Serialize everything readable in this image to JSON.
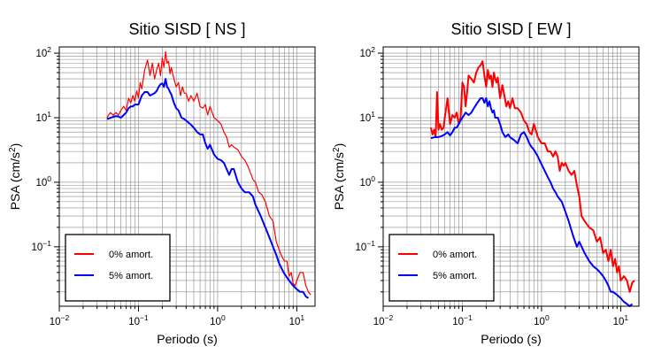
{
  "chart_data": [
    {
      "type": "line",
      "title": "Sitio SISD [ NS ]",
      "xlabel": "Periodo (s)",
      "ylabel_base": "PSA (cm/s",
      "ylabel_sup": "2",
      "ylabel_end": ")",
      "xscale": "log",
      "yscale": "log",
      "xlim": [
        0.01,
        17
      ],
      "ylim": [
        0.012,
        125
      ],
      "grid": true,
      "legend_position": "bottom-left",
      "x_ticks": [
        {
          "v": 0.01,
          "b": "10",
          "e": "−2"
        },
        {
          "v": 0.1,
          "b": "10",
          "e": "−1"
        },
        {
          "v": 1,
          "b": "10",
          "e": "0"
        },
        {
          "v": 10,
          "b": "10",
          "e": "1"
        }
      ],
      "y_ticks": [
        {
          "v": 0.1,
          "b": "10",
          "e": "−1"
        },
        {
          "v": 1,
          "b": "10",
          "e": "0"
        },
        {
          "v": 10,
          "b": "10",
          "e": "1"
        },
        {
          "v": 100,
          "b": "10",
          "e": "2"
        }
      ],
      "series": [
        {
          "name": "0% amort.",
          "color": "#ff0000",
          "width": 1.2,
          "x": [
            0.04,
            0.044,
            0.048,
            0.052,
            0.056,
            0.06,
            0.065,
            0.07,
            0.075,
            0.08,
            0.085,
            0.09,
            0.095,
            0.1,
            0.105,
            0.11,
            0.12,
            0.13,
            0.14,
            0.15,
            0.16,
            0.17,
            0.18,
            0.19,
            0.2,
            0.21,
            0.22,
            0.23,
            0.24,
            0.25,
            0.26,
            0.28,
            0.3,
            0.32,
            0.34,
            0.36,
            0.38,
            0.4,
            0.43,
            0.46,
            0.5,
            0.55,
            0.6,
            0.65,
            0.7,
            0.75,
            0.8,
            0.9,
            1.0,
            1.1,
            1.2,
            1.3,
            1.4,
            1.5,
            1.6,
            1.8,
            2.0,
            2.2,
            2.4,
            2.6,
            2.8,
            3.0,
            3.3,
            3.6,
            4.0,
            4.5,
            5.0,
            5.5,
            6.0,
            6.5,
            7.0,
            7.5,
            8.0,
            8.5,
            9.0,
            9.5,
            10.0,
            11.0,
            12.0,
            13.0,
            14.0,
            15.0
          ],
          "y": [
            10,
            12,
            11,
            12,
            11,
            13,
            15,
            13,
            20,
            17,
            22,
            18,
            26,
            20,
            35,
            28,
            55,
            78,
            45,
            70,
            40,
            55,
            70,
            45,
            85,
            60,
            105,
            70,
            75,
            48,
            60,
            40,
            30,
            35,
            22,
            30,
            24,
            24,
            18,
            22,
            18,
            24,
            15,
            14,
            16,
            11,
            15,
            10,
            9,
            8,
            6,
            5,
            3.5,
            3.8,
            3.5,
            3.2,
            2.5,
            2.2,
            1.8,
            1.4,
            1.1,
            1.0,
            0.7,
            0.65,
            0.5,
            0.3,
            0.25,
            0.12,
            0.09,
            0.07,
            0.06,
            0.06,
            0.035,
            0.04,
            0.027,
            0.025,
            0.03,
            0.04,
            0.04,
            0.025,
            0.02,
            0.018
          ]
        },
        {
          "name": "5% amort.",
          "color": "#0000ff",
          "width": 2.0,
          "x": [
            0.04,
            0.045,
            0.05,
            0.055,
            0.06,
            0.065,
            0.07,
            0.075,
            0.08,
            0.085,
            0.09,
            0.095,
            0.1,
            0.11,
            0.12,
            0.13,
            0.14,
            0.15,
            0.16,
            0.17,
            0.18,
            0.19,
            0.2,
            0.21,
            0.22,
            0.23,
            0.24,
            0.25,
            0.26,
            0.28,
            0.3,
            0.32,
            0.35,
            0.38,
            0.4,
            0.45,
            0.5,
            0.55,
            0.6,
            0.65,
            0.7,
            0.75,
            0.8,
            0.9,
            1.0,
            1.1,
            1.2,
            1.3,
            1.4,
            1.5,
            1.6,
            1.8,
            2.0,
            2.2,
            2.5,
            2.8,
            3.0,
            3.5,
            4.0,
            4.5,
            5.0,
            5.5,
            6.0,
            6.5,
            7.0,
            8.0,
            9.0,
            10.0,
            11.0,
            12.0,
            13.0,
            14.0
          ],
          "y": [
            9.5,
            10,
            10.5,
            10.5,
            10,
            11,
            12,
            14,
            15,
            15,
            16,
            16,
            16,
            22,
            25,
            25,
            22,
            23,
            24,
            26,
            30,
            33,
            34,
            30,
            40,
            30,
            28,
            25,
            23,
            17,
            14,
            13,
            10,
            9.5,
            9,
            8,
            7,
            6,
            5.5,
            5.5,
            4,
            3.3,
            3.8,
            2.7,
            2.3,
            2.2,
            2.0,
            1.6,
            1.3,
            1.6,
            1.6,
            1.0,
            0.8,
            0.7,
            0.7,
            0.6,
            0.45,
            0.3,
            0.2,
            0.14,
            0.1,
            0.075,
            0.055,
            0.045,
            0.038,
            0.03,
            0.025,
            0.022,
            0.02,
            0.02,
            0.017,
            0.016
          ]
        }
      ]
    },
    {
      "type": "line",
      "title": "Sitio SISD [ EW ]",
      "xlabel": "Periodo (s)",
      "ylabel_base": "PSA (cm/s",
      "ylabel_sup": "2",
      "ylabel_end": ")",
      "xscale": "log",
      "yscale": "log",
      "xlim": [
        0.01,
        17
      ],
      "ylim": [
        0.012,
        125
      ],
      "grid": true,
      "legend_position": "bottom-left",
      "x_ticks": [
        {
          "v": 0.01,
          "b": "10",
          "e": "−2"
        },
        {
          "v": 0.1,
          "b": "10",
          "e": "−1"
        },
        {
          "v": 1,
          "b": "10",
          "e": "0"
        },
        {
          "v": 10,
          "b": "10",
          "e": "1"
        }
      ],
      "y_ticks": [
        {
          "v": 0.1,
          "b": "10",
          "e": "−1"
        },
        {
          "v": 1,
          "b": "10",
          "e": "0"
        },
        {
          "v": 10,
          "b": "10",
          "e": "1"
        },
        {
          "v": 100,
          "b": "10",
          "e": "2"
        }
      ],
      "series": [
        {
          "name": "0% amort.",
          "color": "#ff0000",
          "width": 2.0,
          "x": [
            0.04,
            0.042,
            0.044,
            0.046,
            0.048,
            0.05,
            0.052,
            0.055,
            0.058,
            0.06,
            0.065,
            0.07,
            0.075,
            0.08,
            0.085,
            0.09,
            0.095,
            0.1,
            0.105,
            0.11,
            0.115,
            0.12,
            0.13,
            0.14,
            0.15,
            0.16,
            0.17,
            0.18,
            0.19,
            0.2,
            0.21,
            0.22,
            0.23,
            0.24,
            0.25,
            0.26,
            0.27,
            0.28,
            0.3,
            0.32,
            0.34,
            0.36,
            0.38,
            0.4,
            0.43,
            0.46,
            0.5,
            0.55,
            0.6,
            0.65,
            0.7,
            0.75,
            0.8,
            0.9,
            1.0,
            1.1,
            1.2,
            1.3,
            1.4,
            1.5,
            1.6,
            1.7,
            1.8,
            1.9,
            2.0,
            2.2,
            2.4,
            2.6,
            2.8,
            3.0,
            3.2,
            3.5,
            4.0,
            4.5,
            5.0,
            5.5,
            6.0,
            6.5,
            7.0,
            7.5,
            8.0,
            8.5,
            9.0,
            9.5,
            10.0,
            11.0,
            12.0,
            13.0,
            14.0,
            15.0
          ],
          "y": [
            7,
            5.5,
            6.5,
            5,
            25,
            6.5,
            8,
            6.5,
            7,
            10,
            20,
            8,
            11,
            10,
            12,
            8,
            10,
            35,
            30,
            15,
            25,
            45,
            40,
            35,
            50,
            60,
            65,
            75,
            45,
            30,
            55,
            40,
            45,
            30,
            50,
            40,
            35,
            42,
            20,
            32,
            22,
            15,
            18,
            14,
            20,
            14,
            14,
            12,
            9,
            8,
            6,
            5.5,
            8,
            5,
            4,
            4,
            3,
            3,
            2.5,
            3,
            2.5,
            1.5,
            2,
            1.8,
            2,
            1.5,
            1.3,
            1.5,
            0.9,
            0.6,
            0.3,
            0.25,
            0.2,
            0.18,
            0.12,
            0.14,
            0.08,
            0.09,
            0.06,
            0.09,
            0.05,
            0.065,
            0.04,
            0.05,
            0.03,
            0.035,
            0.03,
            0.02,
            0.028,
            0.03
          ]
        },
        {
          "name": "5% amort.",
          "color": "#0000ff",
          "width": 2.0,
          "x": [
            0.04,
            0.045,
            0.05,
            0.055,
            0.06,
            0.065,
            0.07,
            0.075,
            0.08,
            0.085,
            0.09,
            0.095,
            0.1,
            0.11,
            0.12,
            0.13,
            0.14,
            0.15,
            0.16,
            0.17,
            0.18,
            0.19,
            0.2,
            0.21,
            0.22,
            0.23,
            0.24,
            0.25,
            0.26,
            0.28,
            0.3,
            0.32,
            0.35,
            0.38,
            0.4,
            0.45,
            0.5,
            0.55,
            0.6,
            0.65,
            0.7,
            0.75,
            0.8,
            0.9,
            1.0,
            1.1,
            1.2,
            1.3,
            1.4,
            1.5,
            1.6,
            1.8,
            2.0,
            2.2,
            2.5,
            2.8,
            3.0,
            3.5,
            4.0,
            4.5,
            5.0,
            5.5,
            6.0,
            6.5,
            7.0,
            7.5,
            8.0,
            9.0,
            10.0,
            11.0,
            12.0,
            13.0,
            14.0
          ],
          "y": [
            4.8,
            5,
            5,
            5.2,
            5.5,
            6,
            5.3,
            6,
            7,
            7,
            8,
            9,
            10,
            12,
            11,
            12,
            14,
            16,
            18,
            20,
            20,
            17,
            20,
            15,
            18,
            14,
            12,
            13,
            10,
            10,
            8,
            6,
            5,
            5.5,
            5,
            4.5,
            4,
            5.5,
            6,
            5,
            4,
            3.5,
            3.2,
            2.5,
            1.9,
            1.5,
            1.2,
            1.0,
            0.8,
            0.7,
            0.6,
            0.5,
            0.35,
            0.25,
            0.15,
            0.1,
            0.12,
            0.08,
            0.06,
            0.05,
            0.045,
            0.04,
            0.035,
            0.03,
            0.025,
            0.02,
            0.02,
            0.018,
            0.016,
            0.014,
            0.013,
            0.012,
            0.013
          ]
        }
      ]
    }
  ]
}
